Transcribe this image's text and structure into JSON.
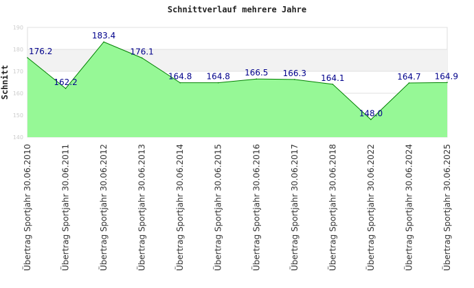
{
  "chart_data": {
    "type": "area",
    "title": "Schnittverlauf mehrere Jahre",
    "xlabel": "",
    "ylabel": "Schnitt",
    "ylim": [
      140,
      190
    ],
    "yticks": [
      "140",
      "150",
      "160",
      "170",
      "180",
      "190"
    ],
    "categories": [
      "Übertrag Sportjahr 30.06.2010",
      "Übertrag Sportjahr 30.06.2011",
      "Übertrag Sportjahr 30.06.2012",
      "Übertrag Sportjahr 30.06.2013",
      "Übertrag Sportjahr 30.06.2014",
      "Übertrag Sportjahr 30.06.2015",
      "Übertrag Sportjahr 30.06.2016",
      "Übertrag Sportjahr 30.06.2017",
      "Übertrag Sportjahr 30.06.2018",
      "Übertrag Sportjahr 30.06.2022",
      "Übertrag Sportjahr 30.06.2024",
      "Übertrag Sportjahr 30.06.2025"
    ],
    "values": [
      176.2,
      162.2,
      183.4,
      176.1,
      164.8,
      164.8,
      166.5,
      166.3,
      164.1,
      148.0,
      164.7,
      164.9
    ],
    "labels": [
      "176.2",
      "162.2",
      "183.4",
      "176.1",
      "164.8",
      "164.8",
      "166.5",
      "166.3",
      "164.1",
      "148.0",
      "164.7",
      "164.9"
    ],
    "grid": true,
    "colors": {
      "fill": "#90f890",
      "line": "#008000",
      "label": "#00008b",
      "band": "#f2f2f2"
    }
  }
}
